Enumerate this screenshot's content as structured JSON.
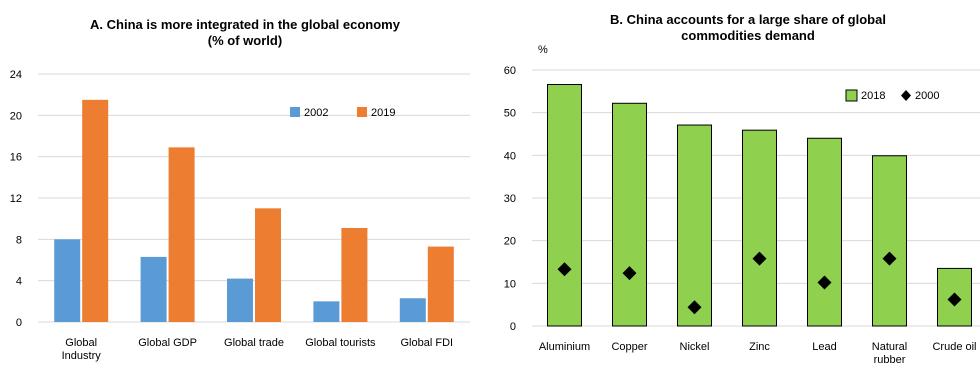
{
  "colors": {
    "a_2002": "#5b9bd5",
    "a_2019": "#ed7d31",
    "b_2018": "#8fd14f",
    "b_2018_border": "#000000",
    "b_2000": "#000000",
    "grid": "#d9d9d9"
  },
  "chart_data": [
    {
      "type": "bar",
      "title": "A. China is more integrated in the global economy",
      "subtitle": "(% of world)",
      "categories": [
        [
          "Global",
          "Industry"
        ],
        [
          "Global GDP"
        ],
        [
          "Global trade"
        ],
        [
          "Global tourists"
        ],
        [
          "Global FDI"
        ]
      ],
      "series": [
        {
          "name": "2002",
          "values": [
            8.0,
            6.3,
            4.2,
            2.0,
            2.3
          ]
        },
        {
          "name": "2019",
          "values": [
            21.5,
            16.9,
            11.0,
            9.1,
            7.3
          ]
        }
      ],
      "ylim": [
        0,
        24
      ],
      "yticks": [
        0,
        4,
        8,
        12,
        16,
        20,
        24
      ],
      "ylabel": "",
      "grid": true,
      "legend": "top-right"
    },
    {
      "type": "bar",
      "title": "B. China accounts for a large share of global",
      "subtitle": "commodities demand",
      "unit": "%",
      "categories": [
        [
          "Aluminium"
        ],
        [
          "Copper"
        ],
        [
          "Nickel"
        ],
        [
          "Zinc"
        ],
        [
          "Lead"
        ],
        [
          "Natural",
          "rubber"
        ],
        [
          "Crude oil"
        ]
      ],
      "series": [
        {
          "name": "2018",
          "kind": "bar",
          "values": [
            56.6,
            52.2,
            47.1,
            45.9,
            44.0,
            39.9,
            13.5
          ]
        },
        {
          "name": "2000",
          "kind": "marker",
          "values": [
            13.3,
            12.4,
            4.4,
            15.8,
            10.2,
            15.8,
            6.2
          ]
        }
      ],
      "ylim": [
        0,
        60
      ],
      "yticks": [
        0,
        10,
        20,
        30,
        40,
        50,
        60
      ],
      "ylabel": "",
      "grid": true,
      "legend": "top-right"
    }
  ]
}
